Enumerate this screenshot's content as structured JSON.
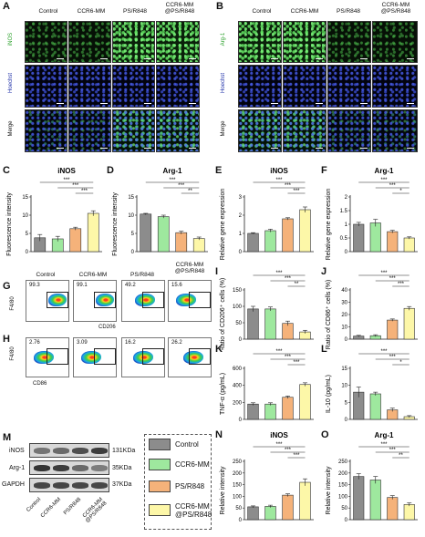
{
  "panels": {
    "A": "A",
    "B": "B",
    "C": "C",
    "D": "D",
    "E": "E",
    "F": "F",
    "G": "G",
    "H": "H",
    "I": "I",
    "J": "J",
    "K": "K",
    "L": "L",
    "M": "M",
    "N": "N",
    "O": "O"
  },
  "groups": [
    "Control",
    "CCR6-MM",
    "PS/R848",
    "CCR6-MM @PS/R848"
  ],
  "group_colors": [
    "#8c8c8c",
    "#9ee89e",
    "#f5b27a",
    "#fdf7a8"
  ],
  "panel_A": {
    "rows": [
      "iNOS",
      "Hoechst",
      "Merge"
    ],
    "cols": [
      "Control",
      "CCR6-MM",
      "PS/R848",
      "CCR6-MM @PS/R848"
    ]
  },
  "panel_B": {
    "rows": [
      "Arg-1",
      "Hoechst",
      "Merge"
    ],
    "cols": [
      "Control",
      "CCR6-MM",
      "PS/R848",
      "CCR6-MM @PS/R848"
    ]
  },
  "flow_G": {
    "cols": [
      "Control",
      "CCR6-MM",
      "PS/R848",
      "CCR6-MM @PS/R848"
    ],
    "values": [
      "99.3",
      "99.1",
      "49.2",
      "15.6"
    ],
    "ylabel": "F4/80",
    "xlabel": "CD206"
  },
  "flow_H": {
    "values": [
      "2.76",
      "3.09",
      "16.2",
      "26.2"
    ],
    "ylabel": "F4/80",
    "xlabel": "CD86"
  },
  "western": {
    "rows": [
      "iNOS",
      "Arg-1",
      "GAPDH"
    ],
    "kda": [
      "131KDa",
      "35KDa",
      "37KDa"
    ],
    "lanes": [
      "Control",
      "CCR6-MM",
      "PS/R848",
      "CCR6-MM @PS/R848"
    ],
    "intensity": [
      [
        0.55,
        0.6,
        0.75,
        0.85
      ],
      [
        0.9,
        0.85,
        0.6,
        0.5
      ],
      [
        0.8,
        0.8,
        0.8,
        0.8
      ]
    ]
  },
  "legend": [
    "Control",
    "CCR6-MM",
    "PS/R848",
    "CCR6-MM @PS/R848"
  ],
  "chart_data": [
    {
      "id": "C",
      "type": "bar",
      "title": "iNOS",
      "ylabel": "Fluorescence intensity",
      "ylim": [
        0,
        15
      ],
      "yticks": [
        0,
        5,
        10,
        15
      ],
      "values": [
        3.8,
        3.5,
        6.3,
        10.5
      ],
      "errors": [
        0.9,
        0.7,
        0.4,
        0.7
      ],
      "sig": [
        {
          "from": 0,
          "to": 3,
          "label": "***"
        },
        {
          "from": 1,
          "to": 3,
          "label": "***"
        },
        {
          "from": 2,
          "to": 3,
          "label": "***"
        }
      ]
    },
    {
      "id": "D",
      "type": "bar",
      "title": "Arg-1",
      "ylabel": "Fluorescence intensity",
      "ylim": [
        0,
        15
      ],
      "yticks": [
        0,
        5,
        10,
        15
      ],
      "values": [
        10.3,
        9.6,
        5.2,
        3.6
      ],
      "errors": [
        0.2,
        0.4,
        0.4,
        0.4
      ],
      "sig": [
        {
          "from": 0,
          "to": 3,
          "label": "***"
        },
        {
          "from": 1,
          "to": 3,
          "label": "***"
        },
        {
          "from": 2,
          "to": 3,
          "label": "**"
        }
      ]
    },
    {
      "id": "E",
      "type": "bar",
      "title": "iNOS",
      "ylabel": "Relative gene expression",
      "ylim": [
        0,
        3
      ],
      "yticks": [
        0,
        1,
        2,
        3
      ],
      "values": [
        1.0,
        1.15,
        1.8,
        2.3
      ],
      "errors": [
        0.04,
        0.08,
        0.06,
        0.15
      ],
      "sig": [
        {
          "from": 0,
          "to": 3,
          "label": "***"
        },
        {
          "from": 1,
          "to": 3,
          "label": "***"
        },
        {
          "from": 2,
          "to": 3,
          "label": "***"
        }
      ]
    },
    {
      "id": "F",
      "type": "bar",
      "title": "Arg-1",
      "ylabel": "Relative gene expression",
      "ylim": [
        0,
        2.0
      ],
      "yticks": [
        0,
        0.5,
        1.0,
        1.5,
        2.0
      ],
      "values": [
        1.0,
        1.05,
        0.73,
        0.5
      ],
      "errors": [
        0.07,
        0.13,
        0.05,
        0.04
      ],
      "sig": [
        {
          "from": 0,
          "to": 3,
          "label": "***"
        },
        {
          "from": 1,
          "to": 3,
          "label": "***"
        },
        {
          "from": 2,
          "to": 3,
          "label": "*"
        }
      ]
    },
    {
      "id": "I",
      "type": "bar",
      "title": "",
      "ylabel": "Ratio of CD206⁺ cells (%)",
      "ylim": [
        0,
        150
      ],
      "yticks": [
        0,
        50,
        100,
        150
      ],
      "values": [
        92,
        92,
        48,
        22
      ],
      "errors": [
        8,
        6,
        7,
        5
      ],
      "sig": [
        {
          "from": 0,
          "to": 3,
          "label": "***"
        },
        {
          "from": 1,
          "to": 3,
          "label": "***"
        },
        {
          "from": 2,
          "to": 3,
          "label": "**"
        }
      ]
    },
    {
      "id": "J",
      "type": "bar",
      "title": "",
      "ylabel": "Ratio of CD86⁺ cells (%)",
      "ylim": [
        0,
        40
      ],
      "yticks": [
        0,
        10,
        20,
        30,
        40
      ],
      "values": [
        2.5,
        2.8,
        15.5,
        25
      ],
      "errors": [
        0.6,
        0.8,
        0.9,
        1.5
      ],
      "sig": [
        {
          "from": 0,
          "to": 3,
          "label": "***"
        },
        {
          "from": 1,
          "to": 3,
          "label": "***"
        },
        {
          "from": 2,
          "to": 3,
          "label": "***"
        }
      ]
    },
    {
      "id": "K",
      "type": "bar",
      "title": "",
      "ylabel": "TNF-α (pg/mL)",
      "ylim": [
        0,
        600
      ],
      "yticks": [
        0,
        200,
        400,
        600
      ],
      "values": [
        180,
        180,
        260,
        410
      ],
      "errors": [
        15,
        15,
        15,
        20
      ],
      "sig": [
        {
          "from": 0,
          "to": 3,
          "label": "***"
        },
        {
          "from": 1,
          "to": 3,
          "label": "***"
        },
        {
          "from": 2,
          "to": 3,
          "label": "***"
        }
      ]
    },
    {
      "id": "L",
      "type": "bar",
      "title": "",
      "ylabel": "IL-10 (pg/mL)",
      "ylim": [
        0,
        15
      ],
      "yticks": [
        0,
        5,
        10,
        15
      ],
      "values": [
        8.0,
        7.5,
        2.8,
        0.8
      ],
      "errors": [
        1.5,
        0.5,
        0.5,
        0.3
      ],
      "sig": [
        {
          "from": 0,
          "to": 3,
          "label": "***"
        },
        {
          "from": 1,
          "to": 3,
          "label": "***"
        },
        {
          "from": 2,
          "to": 3,
          "label": "*"
        }
      ]
    },
    {
      "id": "N",
      "type": "bar",
      "title": "iNOS",
      "ylabel": "Relative intensity",
      "ylim": [
        0,
        250
      ],
      "yticks": [
        0,
        50,
        100,
        150,
        200,
        250
      ],
      "values": [
        55,
        57,
        105,
        160
      ],
      "errors": [
        4,
        5,
        6,
        15
      ],
      "sig": [
        {
          "from": 0,
          "to": 3,
          "label": "***"
        },
        {
          "from": 1,
          "to": 3,
          "label": "***"
        },
        {
          "from": 2,
          "to": 3,
          "label": "***"
        }
      ]
    },
    {
      "id": "O",
      "type": "bar",
      "title": "Arg-1",
      "ylabel": "Relative intensity",
      "ylim": [
        0,
        250
      ],
      "yticks": [
        0,
        50,
        100,
        150,
        200,
        250
      ],
      "values": [
        185,
        170,
        95,
        65
      ],
      "errors": [
        12,
        15,
        8,
        7
      ],
      "sig": [
        {
          "from": 0,
          "to": 3,
          "label": "***"
        },
        {
          "from": 1,
          "to": 3,
          "label": "***"
        },
        {
          "from": 2,
          "to": 3,
          "label": "**"
        }
      ]
    }
  ]
}
